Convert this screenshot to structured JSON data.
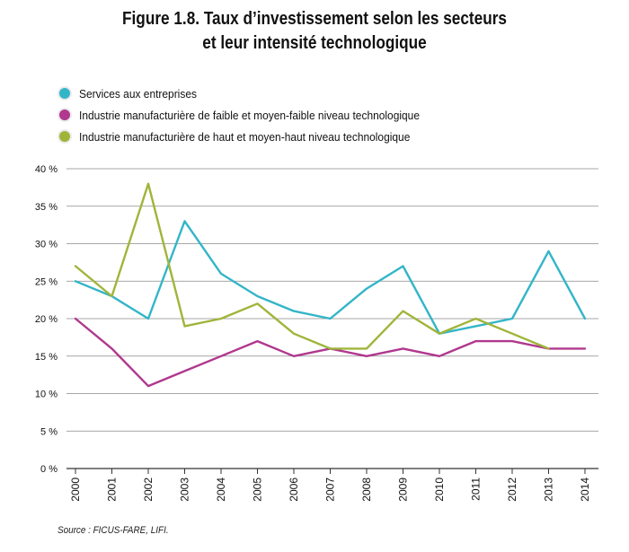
{
  "title_line1": "Figure 1.8. Taux d’investissement selon les secteurs",
  "title_line2": "et leur intensité technologique",
  "source": "Source : FICUS-FARE, LIFI.",
  "chart_data": {
    "type": "line",
    "title": "Figure 1.8. Taux d’investissement selon les secteurs et leur intensité technologique",
    "xlabel": "",
    "ylabel": "",
    "categories": [
      "2000",
      "2001",
      "2002",
      "2003",
      "2004",
      "2005",
      "2006",
      "2007",
      "2008",
      "2009",
      "2010",
      "2011",
      "2012",
      "2013",
      "2014"
    ],
    "ylim": [
      0,
      40
    ],
    "yticks": [
      "0 %",
      "5 %",
      "10 %",
      "15 %",
      "20 %",
      "25 %",
      "30 %",
      "35 %",
      "40 %"
    ],
    "grid": true,
    "legend_position": "top-left",
    "series": [
      {
        "name": "Services aux entreprises",
        "color": "#33b5c8",
        "values": [
          25,
          23,
          20,
          33,
          26,
          23,
          21,
          20,
          24,
          27,
          18,
          19,
          20,
          29,
          20
        ]
      },
      {
        "name": "Industrie manufacturière de faible et moyen-faible niveau technologique",
        "color": "#b0388e",
        "values": [
          20,
          16,
          11,
          13,
          15,
          17,
          15,
          16,
          15,
          16,
          15,
          17,
          17,
          16,
          16
        ]
      },
      {
        "name": "Industrie manufacturière de haut et moyen-haut niveau technologique",
        "color": "#9fb53a",
        "values": [
          27,
          23,
          38,
          19,
          20,
          22,
          18,
          16,
          16,
          21,
          18,
          20,
          18,
          16,
          null
        ]
      }
    ]
  }
}
